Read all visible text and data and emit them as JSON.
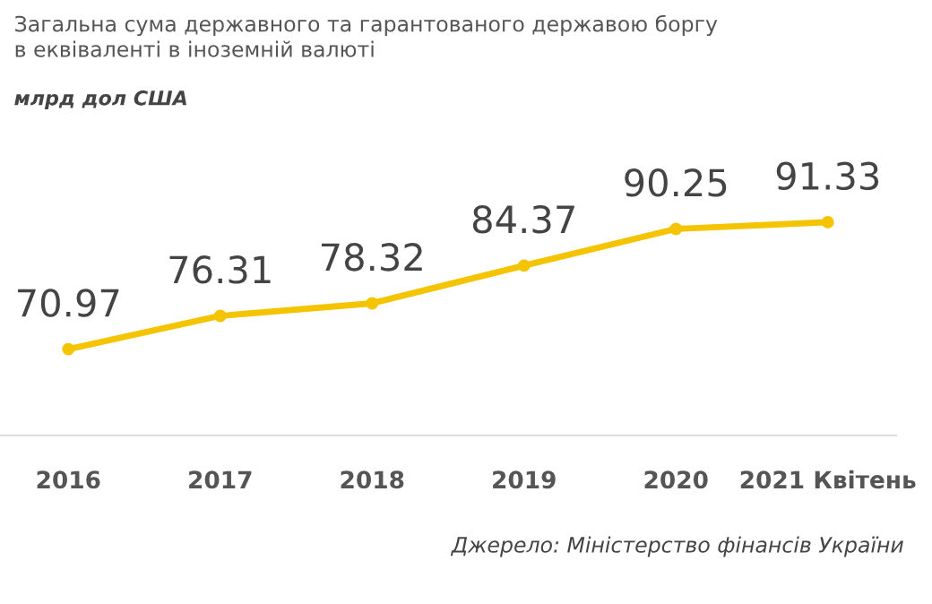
{
  "chart_data": {
    "type": "line",
    "title": "Загальна сума державного та гарантованого державою боргу\nв еквіваленті в іноземній валюті",
    "subtitle": "млрд дол США",
    "categories": [
      "2016",
      "2017",
      "2018",
      "2019",
      "2020",
      "2021 Квітень"
    ],
    "series": [
      {
        "color": "#f5c400",
        "values": [
          70.97,
          76.31,
          78.32,
          84.37,
          90.25,
          91.33
        ]
      }
    ],
    "data_labels": true,
    "marker": "circle",
    "line_style": "solid",
    "grid": false,
    "legend": false,
    "tick_labels": "x",
    "annotations": [
      "Джерело: Міністерство фінансів України"
    ]
  }
}
